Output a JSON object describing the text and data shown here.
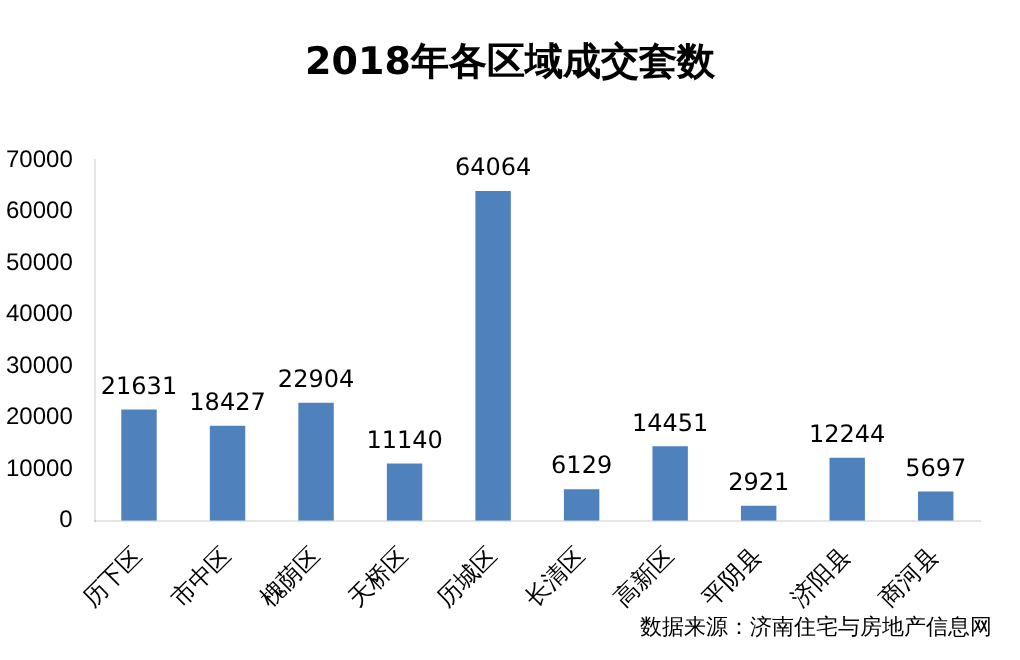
{
  "chart_data": {
    "type": "bar",
    "title": "2018年各区域成交套数",
    "categories": [
      "历下区",
      "市中区",
      "槐荫区",
      "天桥区",
      "历城区",
      "长清区",
      "高新区",
      "平阴县",
      "济阳县",
      "商河县"
    ],
    "values": [
      21631,
      18427,
      22904,
      11140,
      64064,
      6129,
      14451,
      2921,
      12244,
      5697
    ],
    "color": "#4f81bd",
    "ylim": [
      0,
      70000
    ],
    "yticks": [
      0,
      10000,
      20000,
      30000,
      40000,
      50000,
      60000,
      70000
    ],
    "data_labels": true,
    "annotations": [
      "数据来源：济南住宅与房地产信息网"
    ]
  }
}
